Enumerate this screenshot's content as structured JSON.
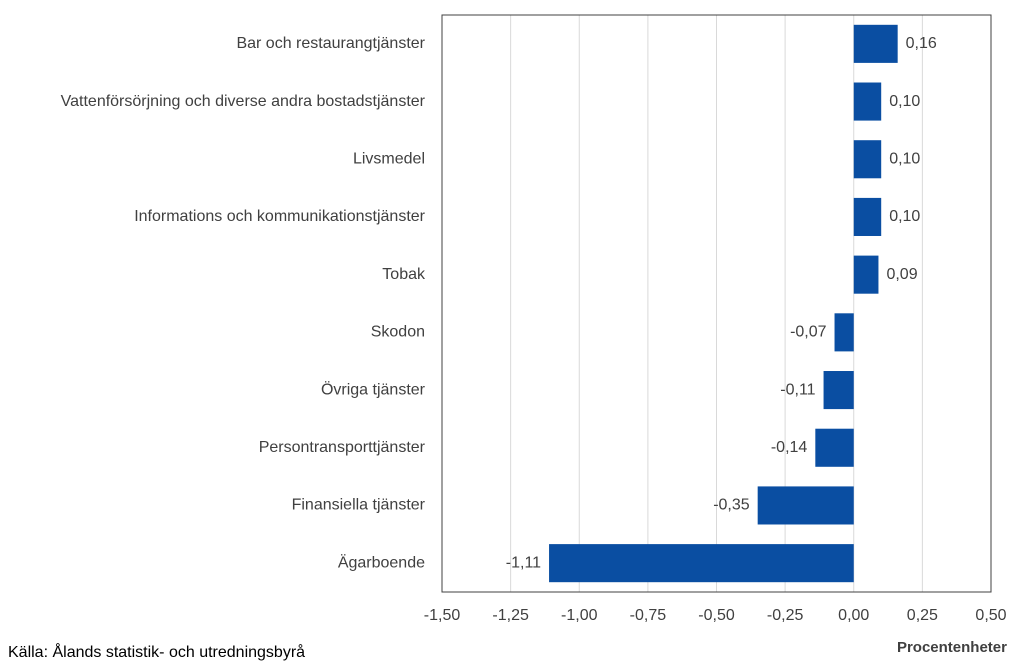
{
  "chart_data": {
    "type": "hbar",
    "categories": [
      "Bar och restaurangtjänster",
      "Vattenförsörjning och diverse andra bostadstjänster",
      "Livsmedel",
      "Informations och kommunikationstjänster",
      "Tobak",
      "Skodon",
      "Övriga tjänster",
      "Persontransporttjänster",
      "Finansiella tjänster",
      "Ägarboende"
    ],
    "values": [
      0.16,
      0.1,
      0.1,
      0.1,
      0.09,
      -0.07,
      -0.11,
      -0.14,
      -0.35,
      -1.11
    ],
    "value_labels": [
      "0,16",
      "0,10",
      "0,10",
      "0,10",
      "0,09",
      "-0,07",
      "-0,11",
      "-0,14",
      "-0,35",
      "-1,11"
    ],
    "color": "#0a4ea2",
    "xlim": [
      -1.5,
      0.5
    ],
    "xticks": [
      {
        "value": -1.5,
        "label": "-1,50"
      },
      {
        "value": -1.25,
        "label": "-1,25"
      },
      {
        "value": -1.0,
        "label": "-1,00"
      },
      {
        "value": -0.75,
        "label": "-0,75"
      },
      {
        "value": -0.5,
        "label": "-0,50"
      },
      {
        "value": -0.25,
        "label": "-0,25"
      },
      {
        "value": 0,
        "label": "0,00"
      },
      {
        "value": 0.25,
        "label": "0,25"
      },
      {
        "value": 0.5,
        "label": "0,50"
      }
    ],
    "grid": true,
    "x_label": "Procentenheter",
    "source": "Källa: Ålands statistik- och utredningsbyrå"
  }
}
